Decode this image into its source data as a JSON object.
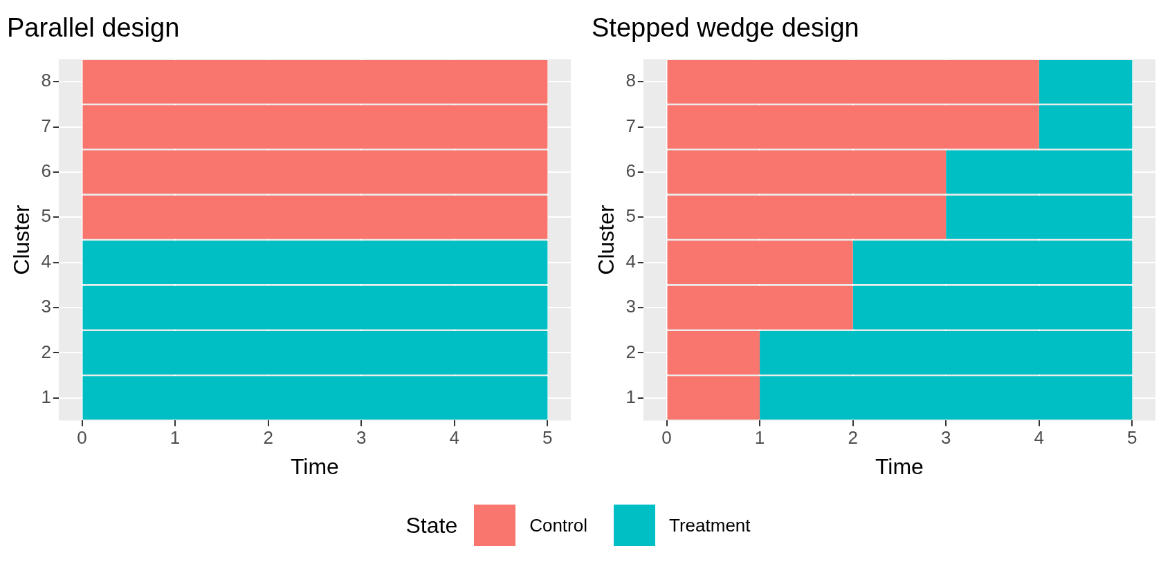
{
  "chart_data": [
    {
      "type": "bar",
      "orientation": "horizontal",
      "stacked": true,
      "title": "Parallel design",
      "xlabel": "Time",
      "ylabel": "Cluster",
      "categories": [
        "8",
        "7",
        "6",
        "5",
        "4",
        "3",
        "2",
        "1"
      ],
      "series": [
        {
          "name": "Control",
          "color": "#f8766d",
          "values": [
            5,
            5,
            5,
            5,
            0,
            0,
            0,
            0
          ]
        },
        {
          "name": "Treatment",
          "color": "#00bfc4",
          "values": [
            0,
            0,
            0,
            0,
            5,
            5,
            5,
            5
          ]
        }
      ],
      "xlim": [
        -0.25,
        5.25
      ],
      "xticks": [
        0,
        1,
        2,
        3,
        4,
        5
      ],
      "grid": true,
      "legend": "bottom"
    },
    {
      "type": "bar",
      "orientation": "horizontal",
      "stacked": true,
      "title": "Stepped wedge design",
      "xlabel": "Time",
      "ylabel": "Cluster",
      "categories": [
        "8",
        "7",
        "6",
        "5",
        "4",
        "3",
        "2",
        "1"
      ],
      "series": [
        {
          "name": "Control",
          "color": "#f8766d",
          "values": [
            4,
            4,
            3,
            3,
            2,
            2,
            1,
            1
          ]
        },
        {
          "name": "Treatment",
          "color": "#00bfc4",
          "values": [
            1,
            1,
            2,
            2,
            3,
            3,
            4,
            4
          ]
        }
      ],
      "xlim": [
        -0.25,
        5.25
      ],
      "xticks": [
        0,
        1,
        2,
        3,
        4,
        5
      ],
      "grid": true,
      "legend": "bottom",
      "legend_title": "State"
    }
  ]
}
